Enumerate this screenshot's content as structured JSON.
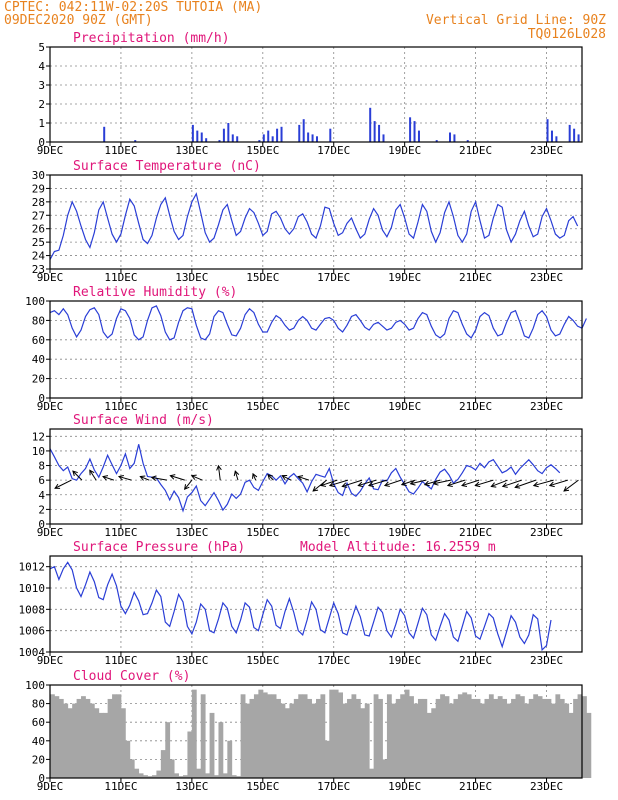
{
  "header": {
    "line1_left": "CPTEC:   042:11W-02:20S  TUTOIA (MA)",
    "line2_left": "09DEC2020 90Z (GMT)",
    "line2_right": "Vertical Grid Line: 90Z",
    "line3_right": "TQ0126L028",
    "model_altitude": "Model Altitude: 16.2559 m"
  },
  "colors": {
    "header": "#e8821e",
    "title": "#e0167a",
    "line": "#2a3ed6",
    "bar": "#2a3ed6",
    "cloud": "#a6a6a6",
    "arrow": "#000000"
  },
  "x_ticks": [
    "9DEC",
    "11DEC",
    "13DEC",
    "15DEC",
    "17DEC",
    "19DEC",
    "21DEC",
    "23DEC"
  ],
  "x_range_days": [
    9,
    24
  ],
  "chart_data": [
    {
      "id": "precip",
      "type": "bar",
      "title": "Precipitation (mm/h)",
      "ylim": [
        0,
        5
      ],
      "yticks": [
        0,
        1,
        2,
        3,
        4,
        5
      ],
      "x_start": "09DEC2020",
      "step_hours": 3,
      "values": [
        0,
        0,
        0,
        0,
        0,
        0,
        0,
        0,
        0,
        0,
        0,
        0,
        0.8,
        0,
        0,
        0,
        0,
        0,
        0,
        0.1,
        0,
        0,
        0,
        0,
        0,
        0,
        0,
        0,
        0,
        0,
        0,
        0,
        0.9,
        0.6,
        0.5,
        0.2,
        0,
        0,
        0.1,
        0.7,
        1,
        0.4,
        0.3,
        0,
        0,
        0,
        0,
        0.1,
        0.4,
        0.6,
        0.3,
        0.7,
        0.8,
        0,
        0,
        0,
        0.9,
        1.2,
        0.5,
        0.4,
        0.3,
        0,
        0,
        0.7,
        0,
        0,
        0,
        0,
        0,
        0,
        0,
        0,
        1.8,
        1.1,
        0.9,
        0.4,
        0,
        0,
        0,
        0,
        0,
        1.3,
        1.1,
        0.6,
        0,
        0,
        0,
        0.1,
        0,
        0,
        0.5,
        0.4,
        0,
        0,
        0.1,
        0,
        0,
        0,
        0,
        0,
        0,
        0,
        0,
        0,
        0,
        0,
        0,
        0,
        0,
        0,
        0,
        0,
        1.2,
        0.6,
        0.3,
        0,
        0,
        0.9,
        0.7,
        0.4
      ]
    },
    {
      "id": "temp",
      "type": "line",
      "title": "Surface Temperature (nC)",
      "ylim": [
        23,
        30
      ],
      "yticks": [
        23,
        24,
        25,
        26,
        27,
        28,
        29,
        30
      ],
      "x_start": "09DEC2020",
      "step_hours": 3,
      "values": [
        23.7,
        24.3,
        24.4,
        25.5,
        27.0,
        28.0,
        27.3,
        26.2,
        25.2,
        24.6,
        25.7,
        27.4,
        28.0,
        26.8,
        25.6,
        25.0,
        25.6,
        27.0,
        28.2,
        27.7,
        26.4,
        25.2,
        24.9,
        25.5,
        26.8,
        27.8,
        28.3,
        27.0,
        25.8,
        25.2,
        25.5,
        26.9,
        28.0,
        28.6,
        27.2,
        25.7,
        25.0,
        25.3,
        26.3,
        27.4,
        27.8,
        26.6,
        25.5,
        25.8,
        26.8,
        27.5,
        27.2,
        26.4,
        25.5,
        25.8,
        27.1,
        27.3,
        26.8,
        26.0,
        25.6,
        26.0,
        26.9,
        27.1,
        26.5,
        25.6,
        25.3,
        26.2,
        27.6,
        27.5,
        26.4,
        25.5,
        25.7,
        26.4,
        26.8,
        26.0,
        25.3,
        25.6,
        26.7,
        27.5,
        27.0,
        25.9,
        25.4,
        26.1,
        27.4,
        27.8,
        26.8,
        25.6,
        25.3,
        26.5,
        27.8,
        27.3,
        25.8,
        25.0,
        25.7,
        27.2,
        28.0,
        26.9,
        25.5,
        25.0,
        25.6,
        27.3,
        28.0,
        26.6,
        25.3,
        25.5,
        26.8,
        27.8,
        27.6,
        25.9,
        25.0,
        25.6,
        26.6,
        27.3,
        26.2,
        25.4,
        25.6,
        26.9,
        27.5,
        26.6,
        25.6,
        25.3,
        25.5,
        26.6,
        26.9,
        26.2
      ]
    },
    {
      "id": "rh",
      "type": "line",
      "title": "Relative Humidity (%)",
      "ylim": [
        0,
        100
      ],
      "yticks": [
        0,
        20,
        40,
        60,
        80,
        100
      ],
      "x_start": "09DEC2020",
      "step_hours": 3,
      "values": [
        88,
        90,
        86,
        92,
        86,
        72,
        63,
        70,
        84,
        91,
        93,
        86,
        68,
        62,
        66,
        82,
        92,
        90,
        82,
        65,
        60,
        63,
        80,
        93,
        95,
        85,
        68,
        60,
        62,
        78,
        90,
        93,
        92,
        75,
        62,
        60,
        66,
        84,
        90,
        88,
        76,
        65,
        64,
        72,
        86,
        92,
        88,
        76,
        68,
        68,
        78,
        85,
        82,
        75,
        70,
        72,
        80,
        84,
        80,
        72,
        70,
        76,
        82,
        83,
        80,
        72,
        68,
        75,
        84,
        86,
        80,
        73,
        70,
        76,
        78,
        74,
        70,
        72,
        78,
        80,
        76,
        70,
        72,
        82,
        88,
        86,
        74,
        65,
        62,
        66,
        82,
        90,
        88,
        76,
        66,
        62,
        70,
        84,
        88,
        85,
        72,
        64,
        66,
        78,
        88,
        90,
        78,
        64,
        62,
        72,
        86,
        90,
        84,
        70,
        64,
        66,
        76,
        84,
        80,
        74,
        72,
        82
      ]
    },
    {
      "id": "wind",
      "type": "line",
      "title": "Surface Wind (m/s)",
      "ylim": [
        0,
        13
      ],
      "yticks": [
        0,
        2,
        4,
        6,
        8,
        10,
        12
      ],
      "x_start": "09DEC2020",
      "step_hours": 3,
      "values": [
        10.3,
        9.2,
        8.0,
        7.3,
        7.8,
        6.2,
        6.0,
        6.9,
        7.6,
        8.9,
        7.4,
        6.4,
        7.8,
        9.4,
        8.1,
        6.9,
        8.0,
        9.6,
        7.6,
        8.3,
        10.9,
        8.3,
        6.5,
        6.4,
        6.3,
        5.4,
        4.6,
        3.3,
        4.5,
        3.6,
        1.8,
        3.7,
        4.3,
        5.2,
        3.2,
        2.5,
        3.4,
        4.3,
        3.2,
        1.9,
        2.7,
        4.1,
        3.5,
        4.1,
        5.7,
        6.0,
        5.0,
        4.6,
        5.8,
        6.9,
        6.6,
        6.0,
        6.6,
        5.5,
        6.4,
        6.9,
        6.2,
        5.6,
        4.4,
        5.8,
        6.8,
        6.6,
        6.4,
        7.6,
        5.5,
        4.3,
        3.9,
        5.6,
        4.2,
        3.8,
        4.5,
        5.5,
        6.3,
        4.8,
        4.7,
        6.0,
        5.9,
        7.0,
        7.6,
        6.4,
        5.4,
        4.4,
        4.1,
        4.9,
        5.8,
        5.3,
        4.8,
        6.1,
        7.1,
        7.5,
        6.7,
        5.6,
        6.1,
        7.0,
        8.0,
        7.8,
        7.4,
        8.3,
        7.7,
        8.5,
        8.8,
        7.9,
        7.0,
        7.3,
        7.8,
        6.8,
        7.6,
        8.2,
        8.8,
        8.1,
        7.3,
        6.9,
        7.7,
        8.1,
        7.6,
        7.0
      ]
    },
    {
      "id": "pres",
      "type": "line",
      "title": "Surface Pressure (hPa)",
      "ylim": [
        1004,
        1013
      ],
      "yticks": [
        1004,
        1006,
        1008,
        1010,
        1012
      ],
      "x_start": "09DEC2020",
      "step_hours": 3,
      "values": [
        1011.8,
        1012.0,
        1010.8,
        1011.8,
        1012.4,
        1011.7,
        1010.0,
        1009.2,
        1010.3,
        1011.5,
        1010.6,
        1009.1,
        1008.9,
        1010.3,
        1011.3,
        1010.2,
        1008.3,
        1007.6,
        1008.4,
        1009.6,
        1008.8,
        1007.5,
        1007.6,
        1008.6,
        1009.8,
        1009.2,
        1006.8,
        1006.4,
        1007.8,
        1009.4,
        1008.7,
        1006.4,
        1005.7,
        1006.8,
        1008.5,
        1008.0,
        1006.0,
        1005.8,
        1007.1,
        1008.6,
        1008.1,
        1006.4,
        1005.8,
        1007.0,
        1008.6,
        1008.2,
        1006.3,
        1006.0,
        1007.5,
        1008.9,
        1008.3,
        1006.5,
        1006.2,
        1007.8,
        1009.0,
        1007.7,
        1006.0,
        1005.6,
        1007.0,
        1008.7,
        1008.0,
        1006.1,
        1005.8,
        1007.2,
        1008.6,
        1007.6,
        1005.8,
        1005.6,
        1007.0,
        1008.3,
        1007.3,
        1005.6,
        1005.5,
        1006.8,
        1008.2,
        1007.7,
        1006.0,
        1005.4,
        1006.6,
        1008.0,
        1007.4,
        1005.8,
        1005.3,
        1006.7,
        1008.1,
        1007.5,
        1005.6,
        1005.1,
        1006.4,
        1007.6,
        1007.0,
        1005.4,
        1005.0,
        1006.4,
        1007.8,
        1007.2,
        1005.5,
        1005.2,
        1006.4,
        1007.6,
        1007.2,
        1005.7,
        1004.5,
        1005.9,
        1007.4,
        1006.8,
        1005.4,
        1004.8,
        1005.6,
        1007.5,
        1007.1,
        1004.2,
        1004.6,
        1007.0
      ]
    },
    {
      "id": "cloud",
      "type": "area",
      "title": "Cloud Cover (%)",
      "ylim": [
        0,
        100
      ],
      "yticks": [
        0,
        20,
        40,
        60,
        80,
        100
      ],
      "x_start": "09DEC2020",
      "step_hours": 3,
      "values": [
        90,
        88,
        85,
        80,
        75,
        80,
        85,
        88,
        85,
        80,
        75,
        70,
        70,
        85,
        90,
        90,
        75,
        40,
        20,
        10,
        5,
        3,
        2,
        3,
        8,
        30,
        60,
        20,
        5,
        2,
        3,
        50,
        95,
        10,
        90,
        5,
        70,
        3,
        60,
        5,
        40,
        3,
        2,
        90,
        80,
        85,
        90,
        95,
        92,
        90,
        90,
        85,
        80,
        75,
        80,
        85,
        90,
        90,
        85,
        80,
        85,
        90,
        40,
        95,
        95,
        92,
        80,
        85,
        90,
        85,
        75,
        80,
        10,
        90,
        85,
        20,
        90,
        80,
        85,
        90,
        95,
        88,
        80,
        85,
        85,
        70,
        75,
        85,
        90,
        88,
        80,
        85,
        90,
        92,
        90,
        85,
        85,
        80,
        85,
        90,
        85,
        88,
        85,
        80,
        85,
        90,
        88,
        80,
        85,
        90,
        88,
        85,
        85,
        80,
        90,
        85,
        80,
        70,
        85,
        90,
        88,
        70
      ]
    }
  ],
  "wind_arrows": [
    {
      "day": 9.6,
      "u": -1.8,
      "v": -0.9
    },
    {
      "day": 9.9,
      "u": -1.0,
      "v": 1.0
    },
    {
      "day": 10.3,
      "u": -0.7,
      "v": 1.1
    },
    {
      "day": 10.8,
      "u": -1.2,
      "v": 0.4
    },
    {
      "day": 11.3,
      "u": -1.4,
      "v": 0.4
    },
    {
      "day": 11.8,
      "u": -1.0,
      "v": 0.4
    },
    {
      "day": 12.3,
      "u": -1.7,
      "v": 0.3
    },
    {
      "day": 12.8,
      "u": -1.6,
      "v": 0.5
    },
    {
      "day": 13.0,
      "u": -0.8,
      "v": -1.0
    },
    {
      "day": 13.3,
      "u": -1.2,
      "v": 0.5
    },
    {
      "day": 13.8,
      "u": -0.2,
      "v": 1.6
    },
    {
      "day": 14.3,
      "u": -0.3,
      "v": 1.0
    },
    {
      "day": 14.8,
      "u": -0.3,
      "v": 0.7
    },
    {
      "day": 15.3,
      "u": -0.6,
      "v": 0.6
    },
    {
      "day": 15.8,
      "u": -1.0,
      "v": 0.5
    },
    {
      "day": 16.3,
      "u": -1.2,
      "v": 0.4
    },
    {
      "day": 16.8,
      "u": -1.5,
      "v": -1.2
    },
    {
      "day": 17.1,
      "u": -1.8,
      "v": -0.6
    },
    {
      "day": 17.4,
      "u": -2.0,
      "v": -0.6
    },
    {
      "day": 17.8,
      "u": -2.2,
      "v": -0.7
    },
    {
      "day": 18.2,
      "u": -2.0,
      "v": -0.6
    },
    {
      "day": 18.5,
      "u": -2.0,
      "v": -0.6
    },
    {
      "day": 18.9,
      "u": -1.8,
      "v": -0.6
    },
    {
      "day": 19.3,
      "u": -1.5,
      "v": -0.5
    },
    {
      "day": 19.6,
      "u": -1.7,
      "v": -0.4
    },
    {
      "day": 20.0,
      "u": -1.7,
      "v": -0.5
    },
    {
      "day": 20.3,
      "u": -1.9,
      "v": -0.4
    },
    {
      "day": 20.7,
      "u": -1.9,
      "v": -0.6
    },
    {
      "day": 21.1,
      "u": -1.9,
      "v": -0.6
    },
    {
      "day": 21.5,
      "u": -2.0,
      "v": -0.6
    },
    {
      "day": 21.9,
      "u": -1.8,
      "v": -0.7
    },
    {
      "day": 22.3,
      "u": -2.1,
      "v": -0.7
    },
    {
      "day": 22.7,
      "u": -2.3,
      "v": -0.8
    },
    {
      "day": 23.2,
      "u": -2.2,
      "v": -0.6
    },
    {
      "day": 23.6,
      "u": -2.0,
      "v": -0.6
    },
    {
      "day": 23.9,
      "u": -1.6,
      "v": -1.2
    }
  ]
}
